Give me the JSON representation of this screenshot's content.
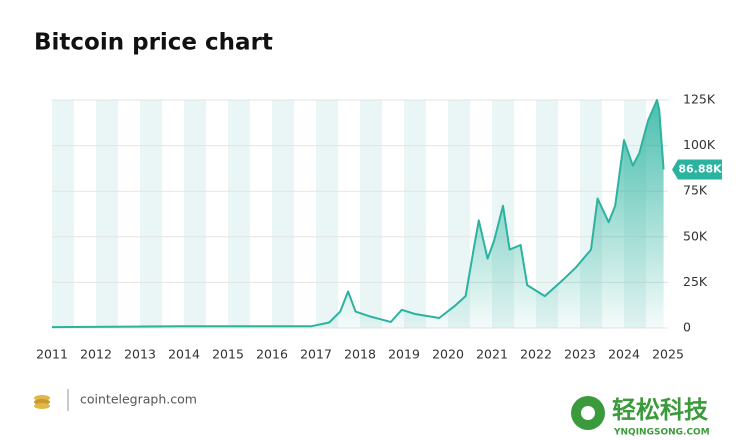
{
  "chart_data": {
    "type": "area",
    "title": "Bitcoin price chart",
    "x": [
      2011.0,
      2013.9,
      2016.9,
      2017.3,
      2017.55,
      2017.73,
      2017.9,
      2018.2,
      2018.7,
      2018.95,
      2019.25,
      2019.8,
      2020.15,
      2020.4,
      2020.6,
      2020.7,
      2020.9,
      2021.05,
      2021.25,
      2021.4,
      2021.65,
      2021.8,
      2022.2,
      2022.55,
      2022.9,
      2023.25,
      2023.4,
      2023.65,
      2023.8,
      2024.0,
      2024.2,
      2024.35,
      2024.55,
      2024.75,
      2024.8,
      2024.9
    ],
    "series": [
      {
        "color": "#2bb3a0",
        "values": [
          500,
          1000,
          1000,
          3000,
          9000,
          20000,
          9000,
          6500,
          3300,
          10000,
          7700,
          5500,
          12000,
          17500,
          45500,
          59000,
          38000,
          48000,
          67000,
          43000,
          45500,
          23500,
          17500,
          25000,
          33000,
          43000,
          71000,
          58000,
          67000,
          103000,
          89000,
          96000,
          114000,
          125000,
          119500,
          86880
        ]
      }
    ],
    "xlim": [
      2011,
      2025
    ],
    "xticks": [
      2011,
      2012,
      2013,
      2014,
      2015,
      2016,
      2017,
      2018,
      2019,
      2020,
      2021,
      2022,
      2023,
      2024,
      2025
    ],
    "ylim": [
      0,
      125000
    ],
    "yticks": [
      0,
      {
        "value": 25000,
        "label": "25K"
      },
      {
        "value": 50000,
        "label": "50K"
      },
      {
        "value": 75000,
        "label": "75K"
      },
      {
        "value": 100000,
        "label": "100K"
      },
      {
        "value": 125000,
        "label": "125K"
      }
    ],
    "current_price": {
      "value": 86880,
      "label": "86.88K"
    },
    "grid": true,
    "source": "cointelegraph.com",
    "watermark": "轻松科技",
    "watermark_url": "YNQINGSONG.COM"
  }
}
